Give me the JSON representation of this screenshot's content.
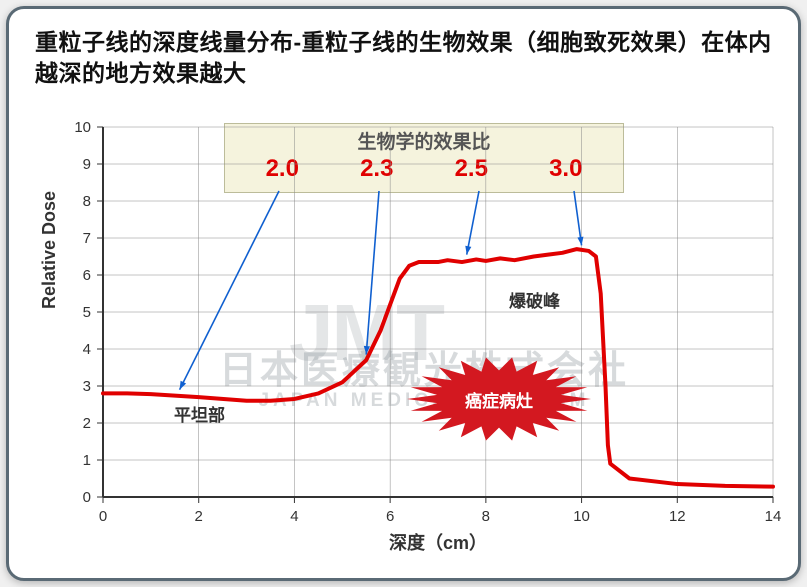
{
  "title": "重粒子线的深度线量分布-重粒子线的生物效果（细胞致死效果）在体内越深的地方效果越大",
  "ratio_box": {
    "title": "生物学的效果比",
    "values": [
      "2.0",
      "2.3",
      "2.5",
      "3.0"
    ],
    "bg_color": "#f5f3dd",
    "border_color": "#bcbc9a",
    "value_color": "#e00000"
  },
  "chart": {
    "type": "line",
    "xlabel": "深度（cm）",
    "ylabel": "Relative Dose",
    "xlim": [
      0,
      14
    ],
    "ylim": [
      0,
      10
    ],
    "xtick_step": 2,
    "ytick_step": 1,
    "line_color": "#e00000",
    "line_width": 4,
    "grid_color": "#888888",
    "axis_color": "#333333",
    "background_color": "#ffffff",
    "tick_fontsize": 15,
    "label_fontsize": 18,
    "curve": [
      [
        0,
        2.8
      ],
      [
        0.5,
        2.8
      ],
      [
        1,
        2.78
      ],
      [
        2,
        2.7
      ],
      [
        3,
        2.6
      ],
      [
        3.5,
        2.6
      ],
      [
        4,
        2.65
      ],
      [
        4.5,
        2.8
      ],
      [
        5,
        3.1
      ],
      [
        5.5,
        3.7
      ],
      [
        5.8,
        4.5
      ],
      [
        6,
        5.2
      ],
      [
        6.2,
        5.9
      ],
      [
        6.4,
        6.25
      ],
      [
        6.6,
        6.35
      ],
      [
        7,
        6.35
      ],
      [
        7.2,
        6.4
      ],
      [
        7.5,
        6.35
      ],
      [
        7.8,
        6.42
      ],
      [
        8,
        6.38
      ],
      [
        8.3,
        6.45
      ],
      [
        8.6,
        6.4
      ],
      [
        9,
        6.5
      ],
      [
        9.3,
        6.55
      ],
      [
        9.6,
        6.6
      ],
      [
        9.9,
        6.7
      ],
      [
        10.15,
        6.65
      ],
      [
        10.3,
        6.5
      ],
      [
        10.4,
        5.5
      ],
      [
        10.5,
        3.0
      ],
      [
        10.55,
        1.4
      ],
      [
        10.6,
        0.9
      ],
      [
        11,
        0.5
      ],
      [
        12,
        0.35
      ],
      [
        13,
        0.3
      ],
      [
        14,
        0.28
      ]
    ]
  },
  "annotations": {
    "flat": "平坦部",
    "peak": "爆破峰",
    "lesion": "癌症病灶"
  },
  "arrows": [
    {
      "from_value_index": 0,
      "to_x": 1.6,
      "to_y": 2.9
    },
    {
      "from_value_index": 1,
      "to_x": 5.5,
      "to_y": 3.85
    },
    {
      "from_value_index": 2,
      "to_x": 7.6,
      "to_y": 6.55
    },
    {
      "from_value_index": 3,
      "to_x": 10.0,
      "to_y": 6.8
    }
  ],
  "burst": {
    "fill_color": "#d31820",
    "text_color": "#ffffff"
  },
  "watermark": {
    "jmt": "JMT",
    "line1": "日本医療観光株式会社",
    "line2": "JAPAN MEDICAL TOURISM",
    "color": "rgba(130,140,145,0.32)"
  }
}
